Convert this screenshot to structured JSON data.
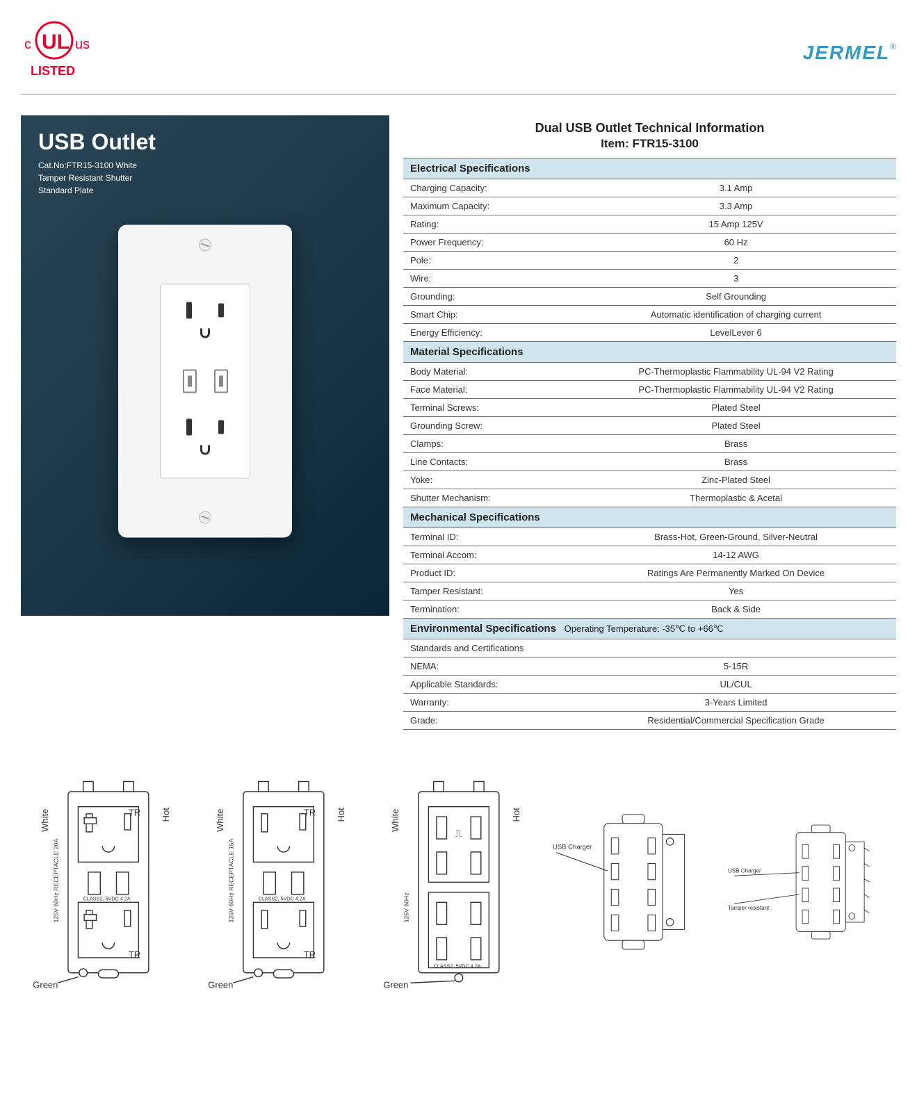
{
  "header": {
    "ul_listed": "LISTED",
    "ul_c": "c",
    "ul_us": "us",
    "brand": "JERMEL",
    "reg": "®",
    "colors": {
      "ul_red": "#e4002b",
      "jermel_blue": "#3998bc"
    }
  },
  "product": {
    "title": "USB Outlet",
    "line1": "Cat.No:FTR15-3100 White",
    "line2": "Tamper Resistant Shutter",
    "line3": "Standard Plate",
    "panel_bg": "#1f3a4a"
  },
  "spec": {
    "header1": "Dual USB Outlet Technical Information",
    "header2": "Item: FTR15-3100",
    "section_bg": "#cfe4ed",
    "border_color": "#4a7a9a",
    "sections": [
      {
        "title": "Electrical Specifications",
        "extra": "",
        "rows": [
          {
            "label": "Charging Capacity:",
            "value": "3.1 Amp"
          },
          {
            "label": "Maximum Capacity:",
            "value": "3.3 Amp"
          },
          {
            "label": "Rating:",
            "value": "15 Amp 125V"
          },
          {
            "label": "Power Frequency:",
            "value": "60 Hz"
          },
          {
            "label": "Pole:",
            "value": "2"
          },
          {
            "label": "Wire:",
            "value": "3"
          },
          {
            "label": "Grounding:",
            "value": "Self Grounding"
          },
          {
            "label": "Smart Chip:",
            "value": "Automatic identification of charging current"
          },
          {
            "label": "Energy Efficiency:",
            "value": "LevelLever 6"
          }
        ]
      },
      {
        "title": "Material Specifications",
        "extra": "",
        "rows": [
          {
            "label": "Body Material:",
            "value": "PC-Thermoplastic Flammability UL-94 V2 Rating"
          },
          {
            "label": "Face Material:",
            "value": "PC-Thermoplastic Flammability UL-94 V2 Rating"
          },
          {
            "label": "Terminal Screws:",
            "value": "Plated Steel"
          },
          {
            "label": "Grounding Screw:",
            "value": "Plated Steel"
          },
          {
            "label": "Clamps:",
            "value": "Brass"
          },
          {
            "label": "Line Contacts:",
            "value": "Brass"
          },
          {
            "label": "Yoke:",
            "value": "Zinc-Plated Steel"
          },
          {
            "label": "Shutter Mechanism:",
            "value": "Thermoplastic & Acetal"
          }
        ]
      },
      {
        "title": "Mechanical Specifications",
        "extra": "",
        "rows": [
          {
            "label": "Terminal ID:",
            "value": "Brass-Hot, Green-Ground, Silver-Neutral"
          },
          {
            "label": "Terminal Accom:",
            "value": "14-12 AWG"
          },
          {
            "label": "Product ID:",
            "value": "Ratings Are Permanently Marked On Device"
          },
          {
            "label": "Tamper Resistant:",
            "value": "Yes"
          },
          {
            "label": "Termination:",
            "value": "Back & Side"
          }
        ]
      },
      {
        "title": "Environmental Specifications",
        "extra": "Operating Temperature: -35℃ to +66℃",
        "subhead": "Standards and Certifications",
        "rows": [
          {
            "label": "NEMA:",
            "value": "5-15R"
          },
          {
            "label": "Applicable Standards:",
            "value": "UL/CUL"
          },
          {
            "label": "Warranty:",
            "value": "3-Years Limited"
          },
          {
            "label": "Grade:",
            "value": "Residential/Commercial Specification Grade"
          }
        ]
      }
    ]
  },
  "diagrams": {
    "labels": {
      "white": "White",
      "hot": "Hot",
      "green": "Green",
      "tr": "TR",
      "usb_charger": "USB Charger",
      "tamper": "Tamper resistant",
      "side_text": "125V 60Hz RECEPTACLE 20A",
      "side_text2": "125V 60Hz RECEPTACLE 15A",
      "side_text3": "125V 60Hz",
      "class2": "CLASS2, 5VDC 4.2A"
    }
  }
}
